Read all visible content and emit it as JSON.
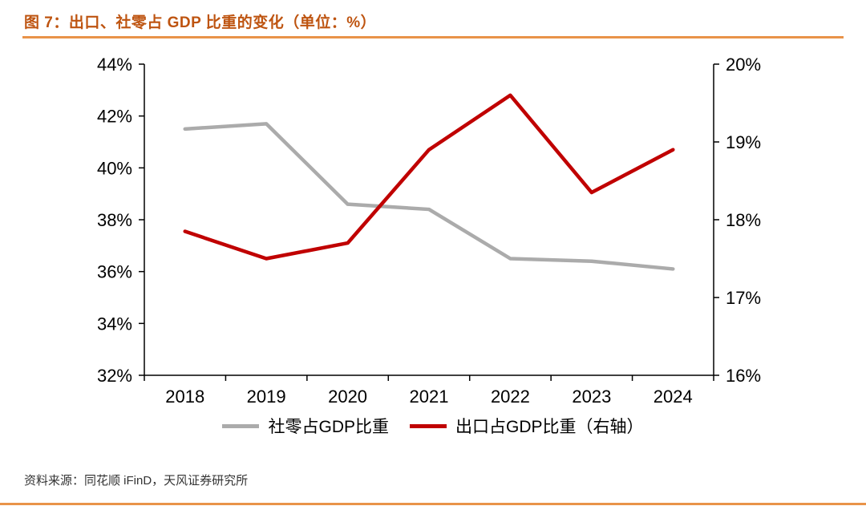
{
  "header": {
    "title": "图 7：出口、社零占 GDP 比重的变化（单位：%）"
  },
  "footer": {
    "source": "资料来源：同花顺 iFinD，天风证券研究所"
  },
  "colors": {
    "title": "#BE5410",
    "rule": "#E99349",
    "axis": "#000000",
    "tick_text": "#000000",
    "series_retail": "#ABABAB",
    "series_export": "#C00000"
  },
  "chart_data": {
    "type": "line",
    "title": "图 7：出口、社零占 GDP 比重的变化（单位：%）",
    "categories": [
      "2018",
      "2019",
      "2020",
      "2021",
      "2022",
      "2023",
      "2024"
    ],
    "series": [
      {
        "name": "社零占GDP比重",
        "axis": "left",
        "color": "#ABABAB",
        "values": [
          41.5,
          41.7,
          38.6,
          38.4,
          36.5,
          36.4,
          36.1
        ]
      },
      {
        "name": "出口占GDP比重（右轴）",
        "axis": "right",
        "color": "#C00000",
        "values": [
          17.85,
          17.5,
          17.7,
          18.9,
          19.6,
          18.35,
          18.9
        ]
      }
    ],
    "left_axis": {
      "min": 32,
      "max": 44,
      "step": 2,
      "ticks": [
        "32%",
        "34%",
        "36%",
        "38%",
        "40%",
        "42%",
        "44%"
      ]
    },
    "right_axis": {
      "min": 16,
      "max": 20,
      "step": 1,
      "ticks": [
        "16%",
        "17%",
        "18%",
        "19%",
        "20%"
      ]
    },
    "xlabel": "",
    "ylabel": "",
    "grid": false,
    "legend_position": "bottom"
  }
}
